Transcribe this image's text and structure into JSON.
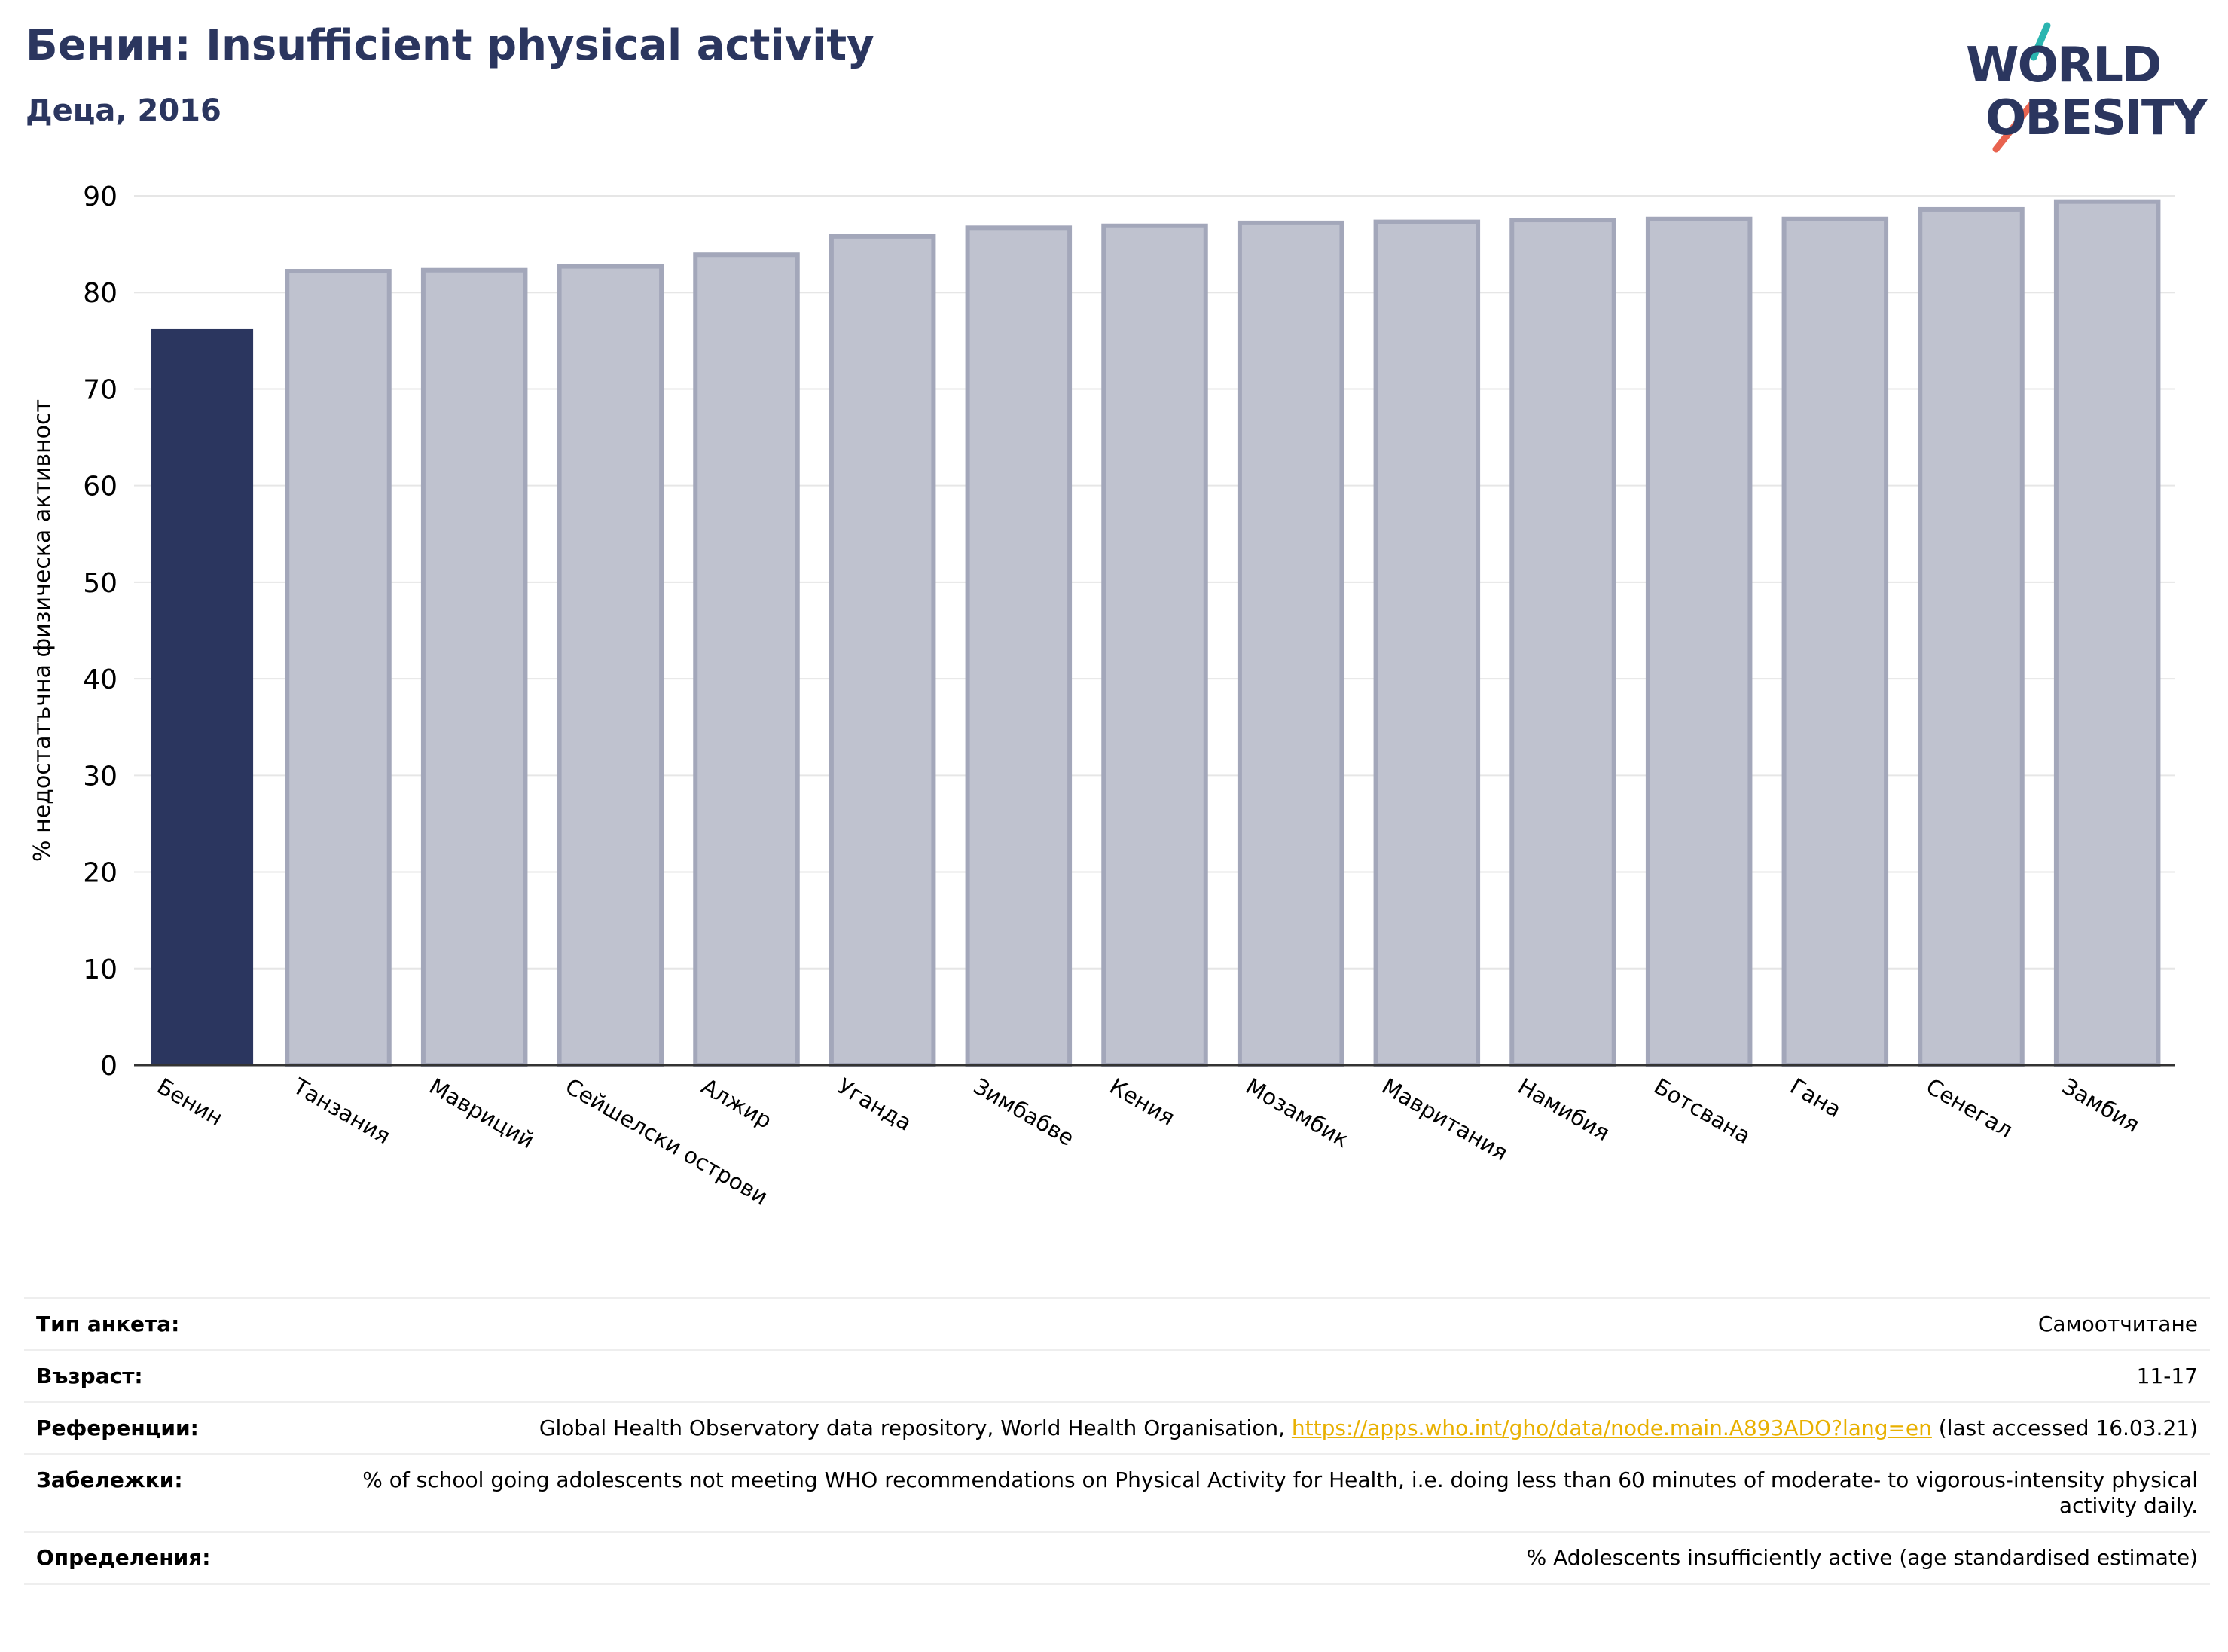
{
  "header": {
    "title": "Бенин: Insufficient physical activity",
    "subtitle": "Деца, 2016"
  },
  "logo": {
    "line1": "WORLD",
    "line2": "OBESITY",
    "colors": {
      "text": "#2b365f",
      "teal": "#2bb5b0",
      "coral": "#e8634f"
    }
  },
  "chart_data": {
    "type": "bar",
    "ylabel": "% недостатъчна физическа активност",
    "ylim": [
      0,
      90
    ],
    "yticks": [
      0,
      10,
      20,
      30,
      40,
      50,
      60,
      70,
      80,
      90
    ],
    "grid": true,
    "categories": [
      "Бенин",
      "Танзания",
      "Мавриций",
      "Сейшелски острови",
      "Алжир",
      "Уганда",
      "Зимбабве",
      "Кения",
      "Мозамбик",
      "Мавритания",
      "Намибия",
      "Ботсвана",
      "Гана",
      "Сенегал",
      "Замбия"
    ],
    "values": [
      76.2,
      82.2,
      82.3,
      82.7,
      83.9,
      85.8,
      86.7,
      86.9,
      87.2,
      87.3,
      87.5,
      87.6,
      87.6,
      88.6,
      89.4
    ],
    "highlight_index": 0,
    "colors": {
      "highlight": "#2b365f",
      "other_fill": "#bfc2cf",
      "other_stroke": "#a3a7ba"
    }
  },
  "meta": {
    "rows": [
      {
        "label": "Тип анкета:",
        "value": "Самоотчитане"
      },
      {
        "label": "Възраст:",
        "value": "11-17"
      },
      {
        "label": "Референции:",
        "value_pre": "Global Health Observatory data repository, World Health Organisation, ",
        "link": "https://apps.who.int/gho/data/node.main.A893ADO?lang=en",
        "value_post": " (last accessed 16.03.21)"
      },
      {
        "label": "Забележки:",
        "value": "% of school going adolescents not meeting WHO recommendations on Physical Activity for Health, i.e. doing less than 60 minutes of moderate- to vigorous-intensity physical activity daily."
      },
      {
        "label": "Определения:",
        "value": "% Adolescents insufficiently active (age standardised estimate)"
      }
    ]
  }
}
